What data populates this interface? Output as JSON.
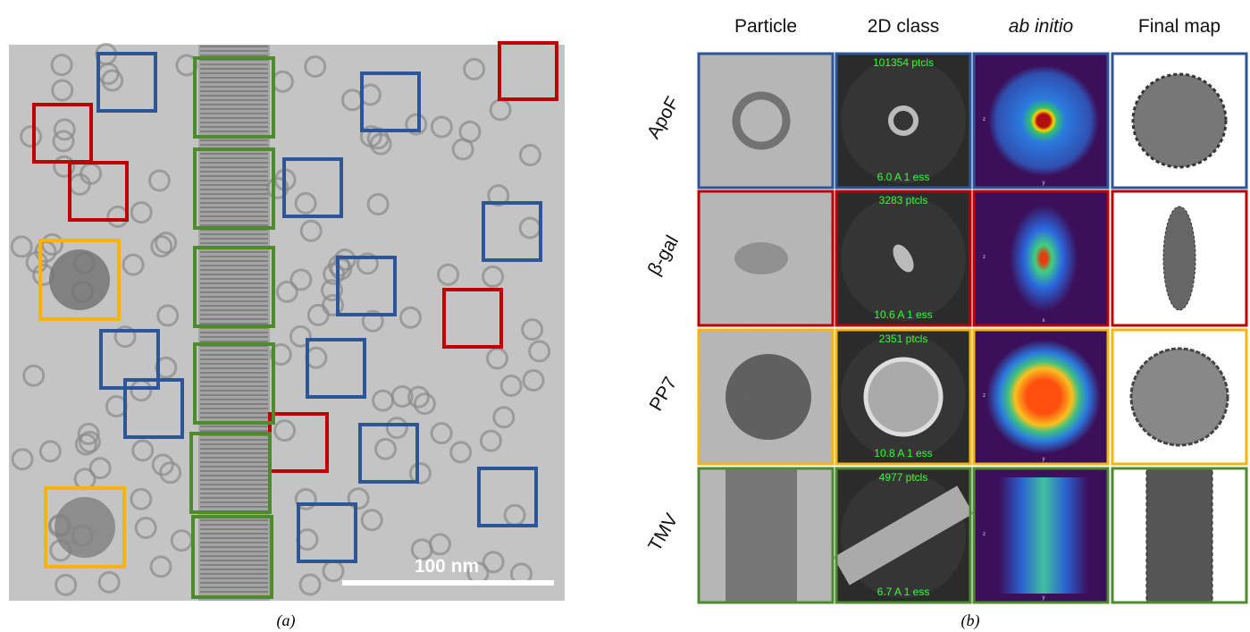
{
  "panel_a": {
    "scale_bar": "100 nm",
    "caption": "(a)"
  },
  "panel_b": {
    "caption": "(b)",
    "columns": [
      "Particle",
      "2D class",
      "ab initio",
      "Final map"
    ],
    "rows": [
      {
        "label": "ApoF",
        "ptcls": "101354 ptcls",
        "resolution": "6.0 A 1 ess",
        "axes": [
          "z",
          "y"
        ]
      },
      {
        "label": "β-gal",
        "ptcls": "3283 ptcls",
        "resolution": "10.6 A 1 ess",
        "axes": [
          "z",
          "x"
        ]
      },
      {
        "label": "PP7",
        "ptcls": "2351 ptcls",
        "resolution": "10.8 A 1 ess",
        "axes": [
          "z",
          "y"
        ]
      },
      {
        "label": "TMV",
        "ptcls": "4977 ptcls",
        "resolution": "6.7 A 1 ess",
        "axes": [
          "z",
          "y"
        ]
      }
    ]
  }
}
